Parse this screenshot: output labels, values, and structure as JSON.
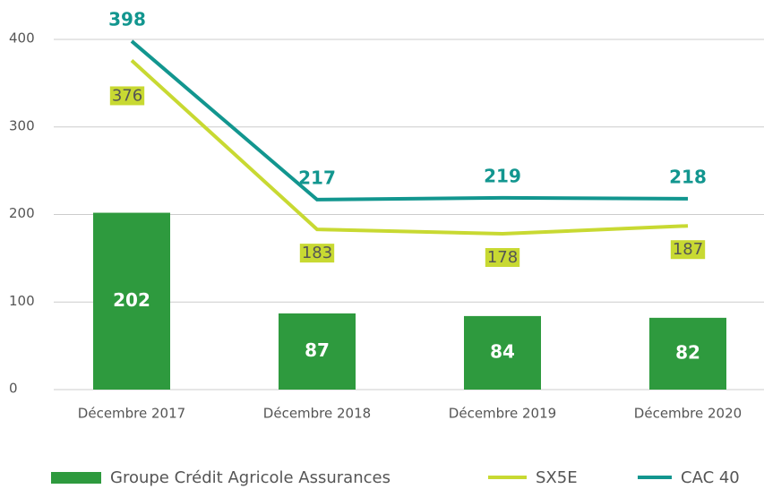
{
  "chart_data": {
    "type": "bar",
    "categories": [
      "Décembre 2017",
      "Décembre 2018",
      "Décembre 2019",
      "Décembre 2020"
    ],
    "series": [
      {
        "name": "Groupe Crédit Agricole Assurances",
        "type": "bar",
        "color": "#2e9a3e",
        "values": [
          202,
          87,
          84,
          82
        ]
      },
      {
        "name": "SX5E",
        "type": "line",
        "color": "#c8d932",
        "values": [
          376,
          183,
          178,
          187
        ]
      },
      {
        "name": "CAC 40",
        "type": "line",
        "color": "#12968f",
        "values": [
          398,
          217,
          219,
          218
        ]
      }
    ],
    "ylim": [
      0,
      400
    ],
    "yticks": [
      0,
      100,
      200,
      300,
      400
    ],
    "grid": true,
    "legend": "bottom"
  }
}
